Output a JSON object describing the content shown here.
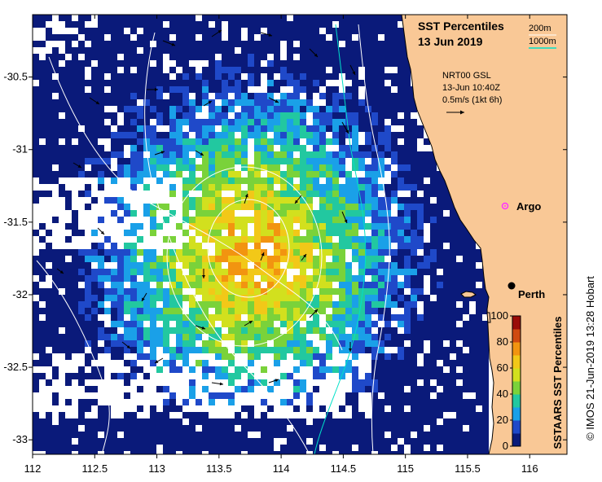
{
  "title": {
    "line1": "SST Percentiles",
    "line2": "13 Jun 2019"
  },
  "contour_legend": {
    "label_200": "200m",
    "label_1000": "1000m",
    "color_200": "#ffffff",
    "color_1000": "#00e0c8"
  },
  "current_info": {
    "line1": "NRT00 GSL",
    "line2": "13-Jun 10:40Z",
    "line3": "0.5m/s (1kt 6h)"
  },
  "places": {
    "argo": "Argo",
    "perth": "Perth"
  },
  "axes": {
    "x_ticks": [
      "112",
      "112.5",
      "113",
      "113.5",
      "114",
      "114.5",
      "115",
      "115.5",
      "116"
    ],
    "y_ticks": [
      "-30.5",
      "-31",
      "-31.5",
      "-32",
      "-32.5",
      "-33"
    ],
    "lon_range": [
      112,
      116.3
    ],
    "lat_range": [
      -30.07,
      -33.1
    ]
  },
  "colorbar": {
    "title": "SSTAARS SST Percentiles",
    "ticks": [
      "100",
      "80",
      "60",
      "40",
      "20",
      "0"
    ],
    "range": [
      0,
      100
    ],
    "colors": [
      "#0a1a7a",
      "#1f49c9",
      "#1aa0e8",
      "#22c8a0",
      "#7ad23a",
      "#d2e01e",
      "#f2c818",
      "#f29410",
      "#d04a10",
      "#9a0c08"
    ]
  },
  "credit": "© IMOS 21-Jun-2019 13:28 Hobart",
  "colors": {
    "land": "#f9c896",
    "ocean_missing": "#ffffff",
    "argo_marker": "#ff33ff",
    "perth_marker": "#000000"
  }
}
